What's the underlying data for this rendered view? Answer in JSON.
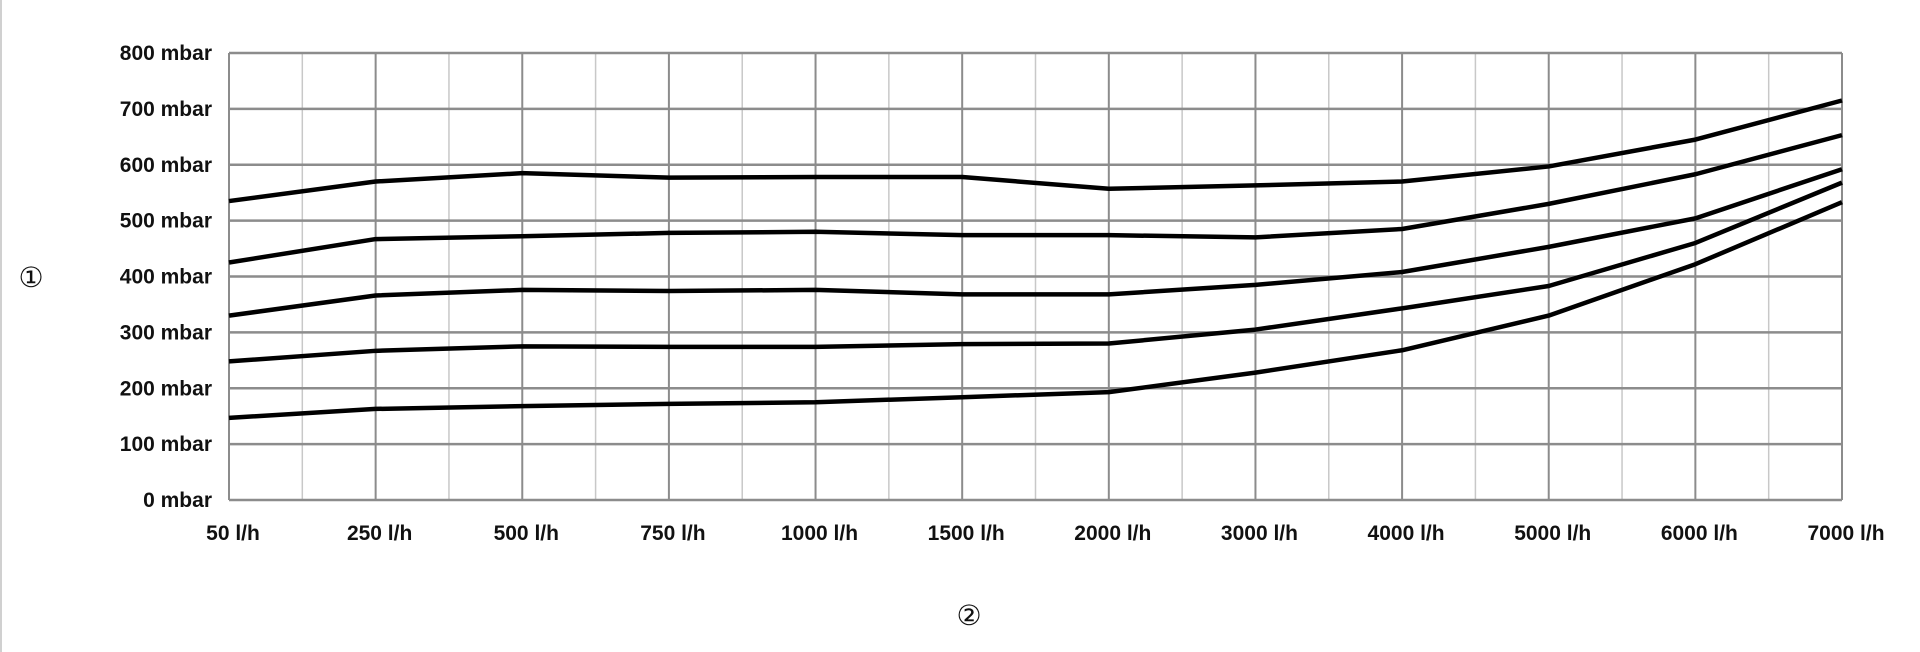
{
  "chart_data": {
    "type": "line",
    "title": "",
    "ylabel": "①",
    "xlabel": "②",
    "categories": [
      "50 l/h",
      "250 l/h",
      "500 l/h",
      "750 l/h",
      "1000 l/h",
      "1500 l/h",
      "2000 l/h",
      "3000 l/h",
      "4000 l/h",
      "5000 l/h",
      "6000 l/h",
      "7000 l/h"
    ],
    "y_unit": "mbar",
    "ylim": [
      0,
      800
    ],
    "yticks": [
      0,
      100,
      200,
      300,
      400,
      500,
      600,
      700,
      800
    ],
    "ytick_labels": [
      "0 mbar",
      "100 mbar",
      "200 mbar",
      "300 mbar",
      "400 mbar",
      "500 mbar",
      "600 mbar",
      "700 mbar",
      "800 mbar"
    ],
    "grid": true,
    "series": [
      {
        "values": [
          535,
          570,
          585,
          577,
          578,
          578,
          557,
          563,
          570,
          597,
          645,
          715
        ]
      },
      {
        "values": [
          425,
          467,
          472,
          478,
          480,
          474,
          474,
          470,
          485,
          530,
          583,
          653
        ]
      },
      {
        "values": [
          330,
          366,
          376,
          374,
          376,
          368,
          368,
          385,
          408,
          453,
          504,
          592
        ]
      },
      {
        "values": [
          248,
          267,
          275,
          274,
          274,
          279,
          280,
          305,
          343,
          383,
          460,
          568
        ]
      },
      {
        "values": [
          147,
          163,
          168,
          172,
          175,
          184,
          193,
          228,
          268,
          330,
          422,
          533
        ]
      }
    ],
    "colors": {
      "line": "#000000",
      "major_grid": "#8c8c8c",
      "minor_grid": "#c8c8c8"
    }
  }
}
